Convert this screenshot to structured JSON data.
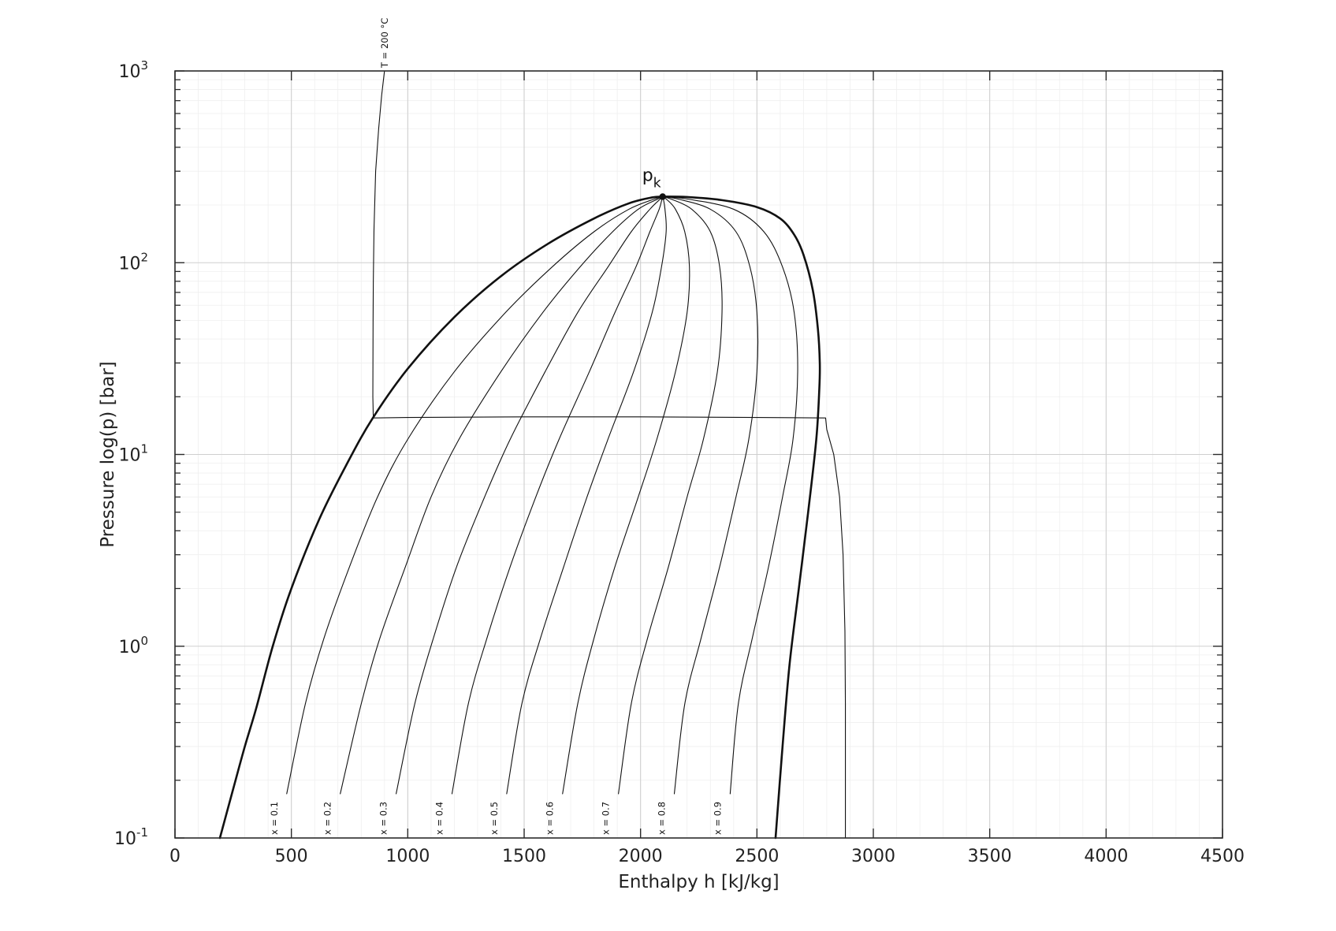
{
  "chart_data": {
    "type": "line",
    "title": "",
    "xlabel": "Enthalpy h [kJ/kg]",
    "ylabel": "Pressure log(p) [bar]",
    "xlim": [
      0,
      4500
    ],
    "ylim": [
      0.1,
      1000
    ],
    "yscale": "log",
    "grid": true,
    "minor_grid": true,
    "x_ticks": [
      0,
      500,
      1000,
      1500,
      2000,
      2500,
      3000,
      3500,
      4000,
      4500
    ],
    "x_tick_labels": [
      "0",
      "500",
      "1000",
      "1500",
      "2000",
      "2500",
      "3000",
      "3500",
      "4000",
      "4500"
    ],
    "y_ticks": [
      {
        "value": 0.1,
        "base": "10",
        "exp": "-1"
      },
      {
        "value": 1,
        "base": "10",
        "exp": "0"
      },
      {
        "value": 10,
        "base": "10",
        "exp": "1"
      },
      {
        "value": 100,
        "base": "10",
        "exp": "2"
      },
      {
        "value": 1000,
        "base": "10",
        "exp": "3"
      }
    ],
    "critical_point": {
      "h": 2095,
      "p": 221,
      "label_base": "p",
      "label_sub": "k"
    },
    "series": [
      {
        "id": "saturated-liquid",
        "weight": "bold",
        "points": [
          [
            193,
            0.1
          ],
          [
            250,
            0.18
          ],
          [
            300,
            0.3
          ],
          [
            350,
            0.48
          ],
          [
            420,
            1.0
          ],
          [
            500,
            2.0
          ],
          [
            620,
            4.6
          ],
          [
            740,
            9.0
          ],
          [
            850,
            15.5
          ],
          [
            1000,
            28
          ],
          [
            1200,
            52
          ],
          [
            1400,
            85
          ],
          [
            1600,
            125
          ],
          [
            1800,
            170
          ],
          [
            1950,
            204
          ],
          [
            2050,
            219
          ],
          [
            2095,
            221
          ]
        ]
      },
      {
        "id": "saturated-vapor",
        "weight": "bold",
        "points": [
          [
            2095,
            221
          ],
          [
            2200,
            220
          ],
          [
            2350,
            212
          ],
          [
            2500,
            195
          ],
          [
            2600,
            170
          ],
          [
            2660,
            140
          ],
          [
            2700,
            110
          ],
          [
            2740,
            72
          ],
          [
            2762,
            45
          ],
          [
            2770,
            30
          ],
          [
            2768,
            22
          ],
          [
            2755,
            12
          ],
          [
            2720,
            5
          ],
          [
            2680,
            2
          ],
          [
            2640,
            0.8
          ],
          [
            2610,
            0.3
          ],
          [
            2580,
            0.1
          ]
        ]
      },
      {
        "id": "x-0.1",
        "label": "x = 0.1",
        "weight": "thin",
        "points": [
          [
            480,
            0.17
          ],
          [
            560,
            0.5
          ],
          [
            640,
            1.1
          ],
          [
            750,
            2.6
          ],
          [
            870,
            6
          ],
          [
            1000,
            12
          ],
          [
            1200,
            27
          ],
          [
            1420,
            55
          ],
          [
            1620,
            95
          ],
          [
            1800,
            145
          ],
          [
            1950,
            190
          ],
          [
            2060,
            215
          ],
          [
            2095,
            221
          ]
        ]
      },
      {
        "id": "x-0.2",
        "label": "x = 0.2",
        "weight": "thin",
        "points": [
          [
            710,
            0.17
          ],
          [
            800,
            0.5
          ],
          [
            880,
            1.1
          ],
          [
            990,
            2.6
          ],
          [
            1100,
            6
          ],
          [
            1220,
            12
          ],
          [
            1400,
            27
          ],
          [
            1580,
            55
          ],
          [
            1740,
            95
          ],
          [
            1880,
            145
          ],
          [
            1990,
            190
          ],
          [
            2075,
            215
          ],
          [
            2095,
            221
          ]
        ]
      },
      {
        "id": "x-0.3",
        "label": "x = 0.3",
        "weight": "thin",
        "points": [
          [
            950,
            0.17
          ],
          [
            1030,
            0.5
          ],
          [
            1110,
            1.1
          ],
          [
            1210,
            2.6
          ],
          [
            1330,
            6
          ],
          [
            1440,
            12
          ],
          [
            1590,
            27
          ],
          [
            1730,
            55
          ],
          [
            1860,
            95
          ],
          [
            1960,
            145
          ],
          [
            2040,
            190
          ],
          [
            2085,
            215
          ],
          [
            2095,
            221
          ]
        ]
      },
      {
        "id": "x-0.4",
        "label": "x = 0.4",
        "weight": "thin",
        "points": [
          [
            1190,
            0.17
          ],
          [
            1260,
            0.5
          ],
          [
            1340,
            1.1
          ],
          [
            1440,
            2.6
          ],
          [
            1550,
            6
          ],
          [
            1650,
            12
          ],
          [
            1780,
            27
          ],
          [
            1890,
            55
          ],
          [
            1980,
            95
          ],
          [
            2040,
            145
          ],
          [
            2080,
            190
          ],
          [
            2092,
            215
          ],
          [
            2095,
            221
          ]
        ]
      },
      {
        "id": "x-0.5",
        "label": "x = 0.5",
        "weight": "thin",
        "points": [
          [
            1425,
            0.17
          ],
          [
            1490,
            0.5
          ],
          [
            1570,
            1.1
          ],
          [
            1670,
            2.6
          ],
          [
            1770,
            6
          ],
          [
            1860,
            12
          ],
          [
            1970,
            27
          ],
          [
            2050,
            55
          ],
          [
            2090,
            95
          ],
          [
            2110,
            145
          ],
          [
            2105,
            190
          ],
          [
            2098,
            215
          ],
          [
            2095,
            221
          ]
        ]
      },
      {
        "id": "x-0.6",
        "label": "x = 0.6",
        "weight": "thin",
        "points": [
          [
            1665,
            0.17
          ],
          [
            1730,
            0.5
          ],
          [
            1800,
            1.1
          ],
          [
            1890,
            2.6
          ],
          [
            1990,
            6
          ],
          [
            2070,
            12
          ],
          [
            2150,
            27
          ],
          [
            2200,
            55
          ],
          [
            2210,
            95
          ],
          [
            2190,
            145
          ],
          [
            2150,
            190
          ],
          [
            2110,
            215
          ],
          [
            2095,
            221
          ]
        ]
      },
      {
        "id": "x-0.7",
        "label": "x = 0.7",
        "weight": "thin",
        "points": [
          [
            1905,
            0.17
          ],
          [
            1960,
            0.5
          ],
          [
            2030,
            1.1
          ],
          [
            2120,
            2.6
          ],
          [
            2200,
            6
          ],
          [
            2270,
            12
          ],
          [
            2330,
            27
          ],
          [
            2350,
            55
          ],
          [
            2340,
            95
          ],
          [
            2300,
            145
          ],
          [
            2220,
            190
          ],
          [
            2130,
            215
          ],
          [
            2095,
            221
          ]
        ]
      },
      {
        "id": "x-0.8",
        "label": "x = 0.8",
        "weight": "thin",
        "points": [
          [
            2145,
            0.17
          ],
          [
            2190,
            0.5
          ],
          [
            2260,
            1.1
          ],
          [
            2340,
            2.6
          ],
          [
            2410,
            6
          ],
          [
            2465,
            12
          ],
          [
            2500,
            27
          ],
          [
            2500,
            55
          ],
          [
            2470,
            95
          ],
          [
            2410,
            145
          ],
          [
            2300,
            190
          ],
          [
            2160,
            215
          ],
          [
            2095,
            221
          ]
        ]
      },
      {
        "id": "x-0.9",
        "label": "x = 0.9",
        "weight": "thin",
        "points": [
          [
            2385,
            0.17
          ],
          [
            2420,
            0.5
          ],
          [
            2480,
            1.1
          ],
          [
            2550,
            2.6
          ],
          [
            2610,
            6
          ],
          [
            2655,
            12
          ],
          [
            2675,
            27
          ],
          [
            2660,
            55
          ],
          [
            2610,
            95
          ],
          [
            2530,
            145
          ],
          [
            2400,
            190
          ],
          [
            2200,
            215
          ],
          [
            2095,
            221
          ]
        ]
      },
      {
        "id": "isotherm-200",
        "label": "T = 200 °C",
        "weight": "thin",
        "points": [
          [
            2880,
            0.1
          ],
          [
            2880,
            0.5
          ],
          [
            2878,
            1.2
          ],
          [
            2870,
            3
          ],
          [
            2855,
            6
          ],
          [
            2830,
            10
          ],
          [
            2800,
            13.5
          ],
          [
            2795,
            15.5
          ],
          [
            2500,
            15.6
          ],
          [
            2000,
            15.7
          ],
          [
            1500,
            15.7
          ],
          [
            1000,
            15.6
          ],
          [
            852,
            15.5
          ],
          [
            850,
            20
          ],
          [
            851,
            50
          ],
          [
            852,
            80
          ],
          [
            855,
            150
          ],
          [
            862,
            300
          ],
          [
            875,
            500
          ],
          [
            888,
            750
          ],
          [
            900,
            1000
          ]
        ]
      }
    ]
  }
}
